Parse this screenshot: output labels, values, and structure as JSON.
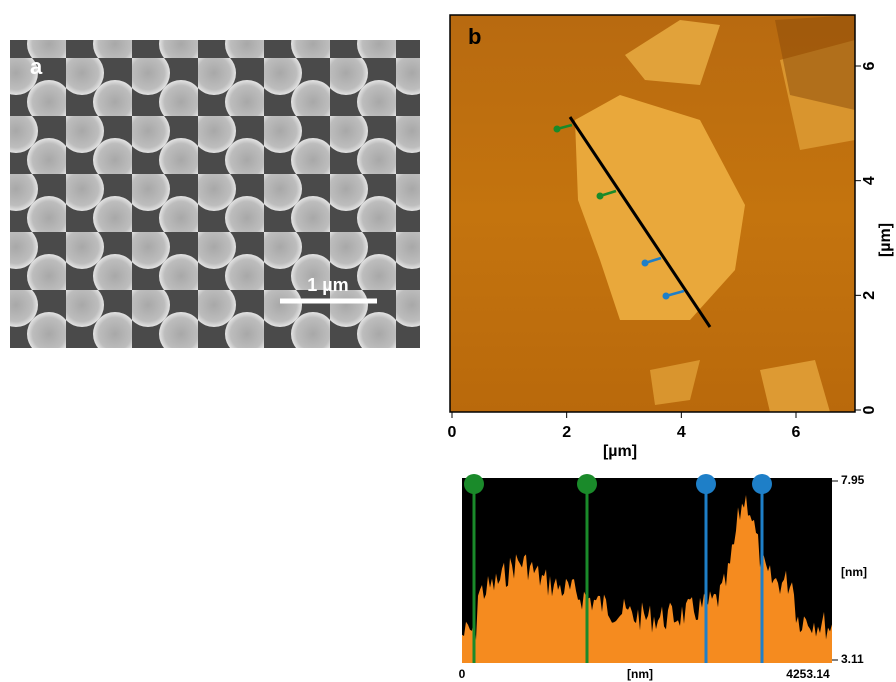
{
  "panel_a": {
    "label": "a",
    "scale_bar": "1 µm"
  },
  "panel_b": {
    "label": "b",
    "x_axis": {
      "ticks": [
        0,
        2,
        4,
        6
      ],
      "title": "[µm]"
    },
    "y_axis": {
      "ticks": [
        0,
        2,
        4,
        6
      ],
      "title": "[µm]"
    }
  },
  "profile": {
    "y_max": "7.95",
    "y_unit": "[nm]",
    "y_min": "3.11",
    "x_min": "0",
    "x_unit": "[nm]",
    "x_max": "4253.14"
  }
}
